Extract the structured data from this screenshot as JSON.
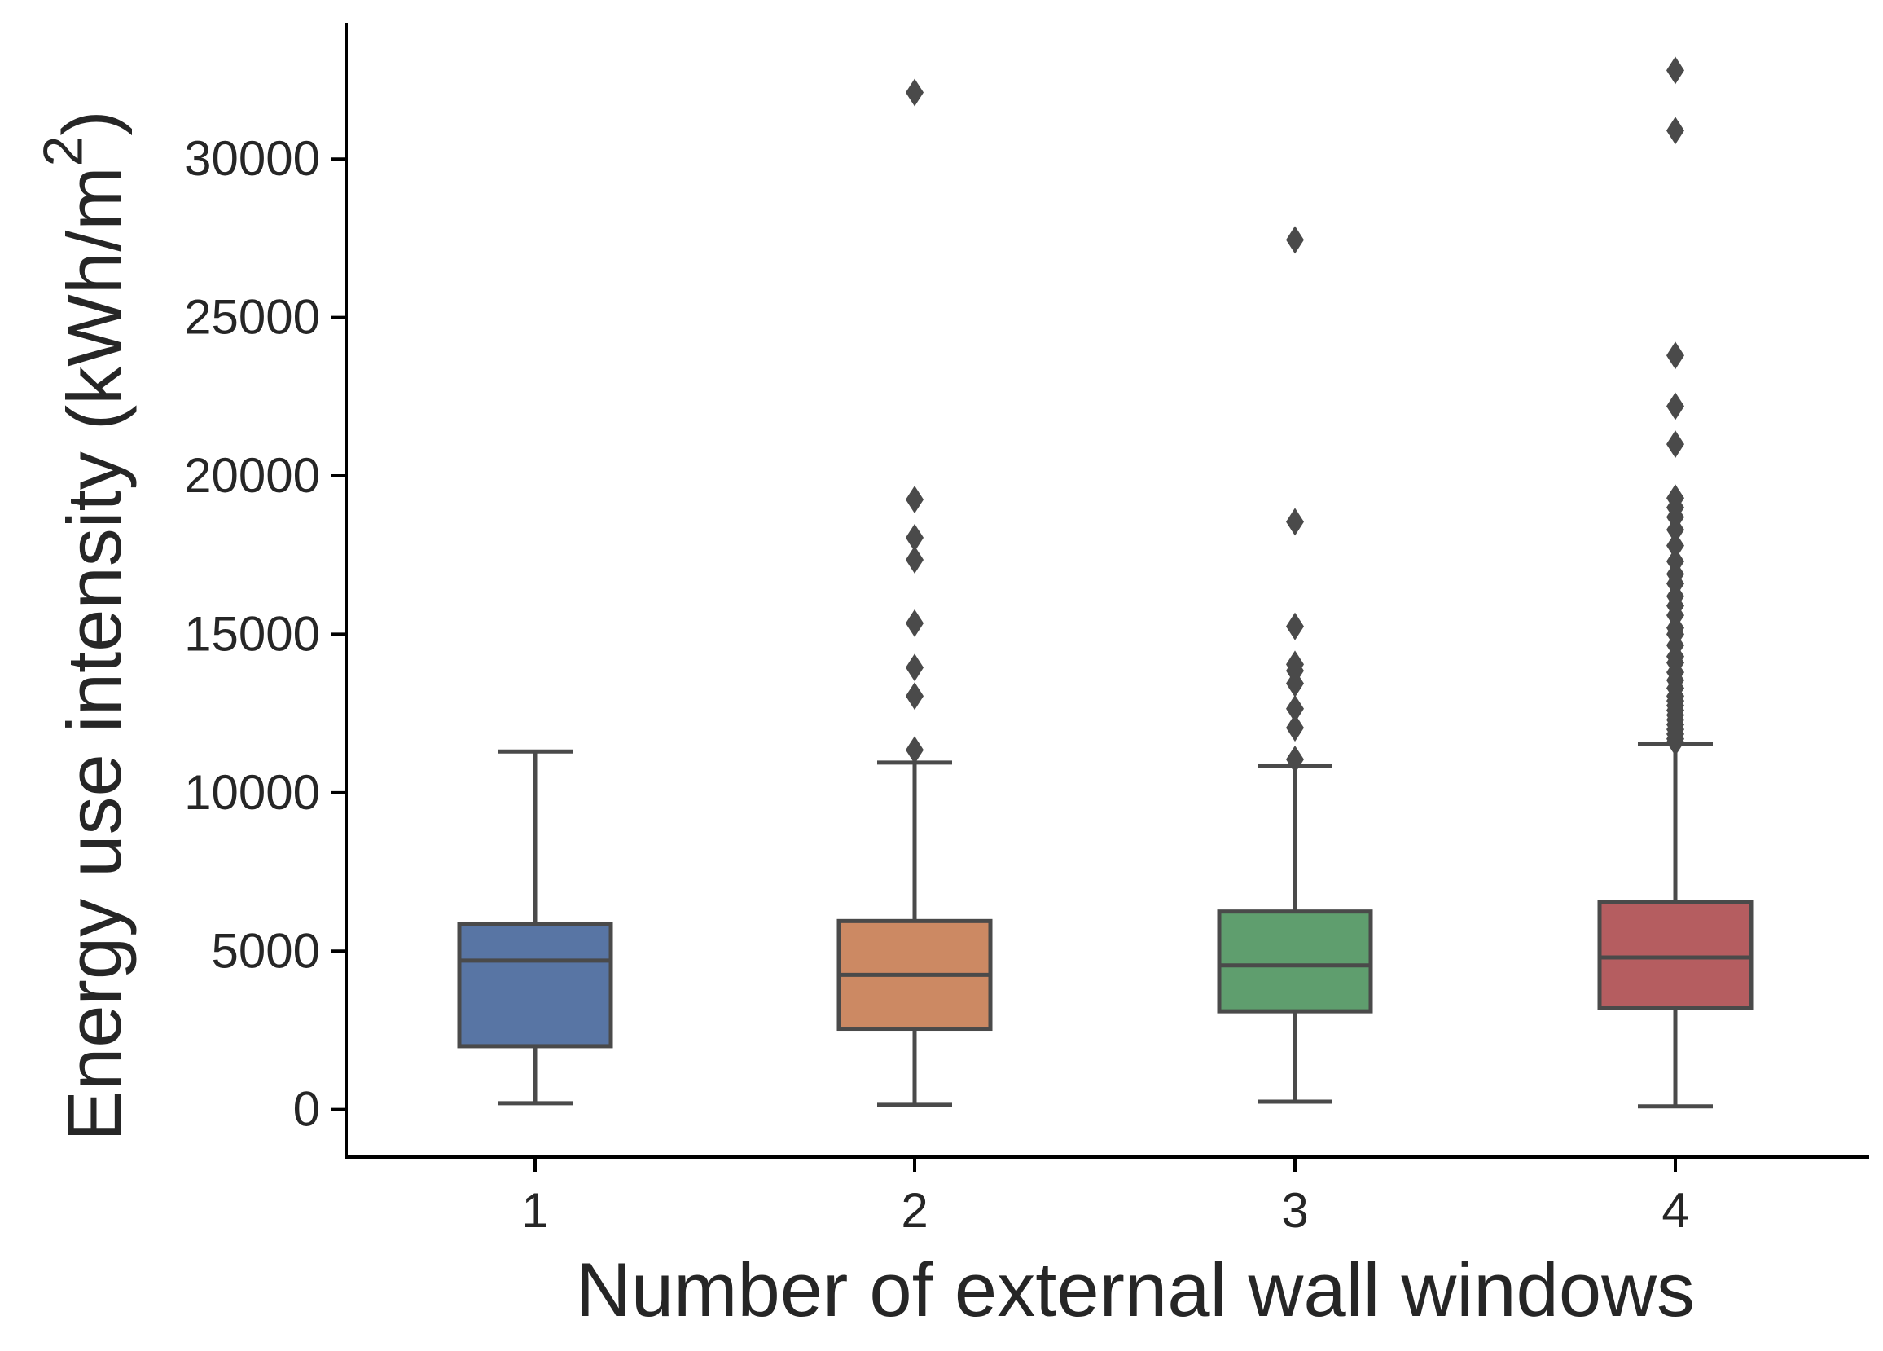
{
  "chart_data": {
    "type": "box",
    "title": "",
    "xlabel": "Number of external wall windows",
    "ylabel": "Energy use intensity (kWh/m",
    "ylabel_superscript": "2",
    "ylabel_close": ")",
    "categories": [
      "1",
      "2",
      "3",
      "4"
    ],
    "ylim": [
      -1500,
      34300
    ],
    "yticks": [
      0,
      5000,
      10000,
      15000,
      20000,
      25000,
      30000
    ],
    "ytick_labels": [
      "0",
      "5000",
      "10000",
      "15000",
      "20000",
      "25000",
      "30000"
    ],
    "grid": false,
    "legend": "none",
    "colors": [
      "#5875a4",
      "#cc8963",
      "#5f9e6e",
      "#b55d60"
    ],
    "edge_color": "#4a4a4a",
    "boxes": [
      {
        "category": "1",
        "whisker_low": 200,
        "q1": 2000,
        "median": 4700,
        "q3": 5850,
        "whisker_high": 11300,
        "outliers": []
      },
      {
        "category": "2",
        "whisker_low": 150,
        "q1": 2550,
        "median": 4250,
        "q3": 5950,
        "whisker_high": 10950,
        "outliers": [
          11350,
          13050,
          13950,
          15350,
          17350,
          18050,
          19250,
          32100
        ]
      },
      {
        "category": "3",
        "whisker_low": 250,
        "q1": 3100,
        "median": 4550,
        "q3": 6250,
        "whisker_high": 10850,
        "outliers": [
          11050,
          12050,
          12650,
          13450,
          13850,
          14050,
          15250,
          18550,
          27450
        ]
      },
      {
        "category": "4",
        "whisker_low": 100,
        "q1": 3200,
        "median": 4800,
        "q3": 6550,
        "whisker_high": 11550,
        "outliers": [
          11600,
          11700,
          11850,
          12000,
          12150,
          12300,
          12450,
          12600,
          12750,
          12900,
          13050,
          13300,
          13550,
          13800,
          14100,
          14300,
          14650,
          15000,
          15200,
          15600,
          15900,
          16200,
          16600,
          16900,
          17300,
          17800,
          18300,
          18700,
          19000,
          19300,
          21000,
          22200,
          23800,
          30900,
          32800
        ]
      }
    ]
  }
}
